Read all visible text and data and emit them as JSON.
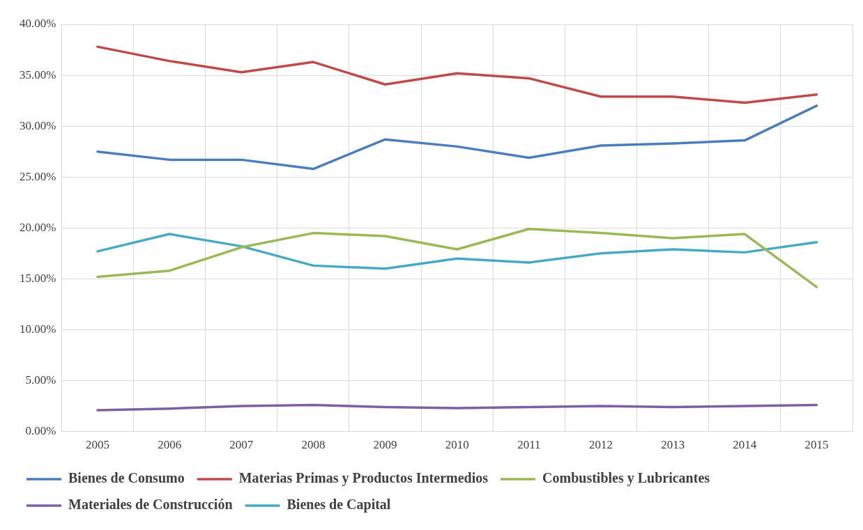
{
  "chart_data": {
    "type": "line",
    "categories": [
      "2005",
      "2006",
      "2007",
      "2008",
      "2009",
      "2010",
      "2011",
      "2012",
      "2013",
      "2014",
      "2015"
    ],
    "series": [
      {
        "name": "Bienes de Consumo",
        "color": "#4a7ebb",
        "values": [
          27.5,
          26.7,
          26.7,
          25.8,
          28.7,
          28.0,
          26.9,
          28.1,
          28.3,
          28.6,
          32.0
        ]
      },
      {
        "name": "Materias Primas y Productos Intermedios",
        "color": "#be4b48",
        "values": [
          37.8,
          36.4,
          35.3,
          36.3,
          34.1,
          35.2,
          34.7,
          32.9,
          32.9,
          32.3,
          33.1
        ]
      },
      {
        "name": "Combustibles y Lubricantes",
        "color": "#98b954",
        "values": [
          15.2,
          15.8,
          18.1,
          19.5,
          19.2,
          17.9,
          19.9,
          19.5,
          19.0,
          19.4,
          14.2
        ]
      },
      {
        "name": "Materiales de Construcción",
        "color": "#7d60a0",
        "values": [
          2.1,
          2.25,
          2.5,
          2.6,
          2.4,
          2.3,
          2.4,
          2.5,
          2.4,
          2.5,
          2.6
        ]
      },
      {
        "name": "Bienes de Capital",
        "color": "#46aac5",
        "values": [
          17.7,
          19.4,
          18.2,
          16.3,
          16.0,
          17.0,
          16.6,
          17.5,
          17.9,
          17.6,
          18.6
        ]
      }
    ],
    "ylim": [
      0,
      40
    ],
    "yticks": [
      {
        "value": 0,
        "label": "0.00%"
      },
      {
        "value": 5,
        "label": "5.00%"
      },
      {
        "value": 10,
        "label": "10.00%"
      },
      {
        "value": 15,
        "label": "15.00%"
      },
      {
        "value": 20,
        "label": "20.00%"
      },
      {
        "value": 25,
        "label": "25.00%"
      },
      {
        "value": 30,
        "label": "30.00%"
      },
      {
        "value": 35,
        "label": "35.00%"
      },
      {
        "value": 40,
        "label": "40.00%"
      }
    ],
    "grid": true,
    "legend": "bottom",
    "marker": "none",
    "line_style": "solid"
  }
}
